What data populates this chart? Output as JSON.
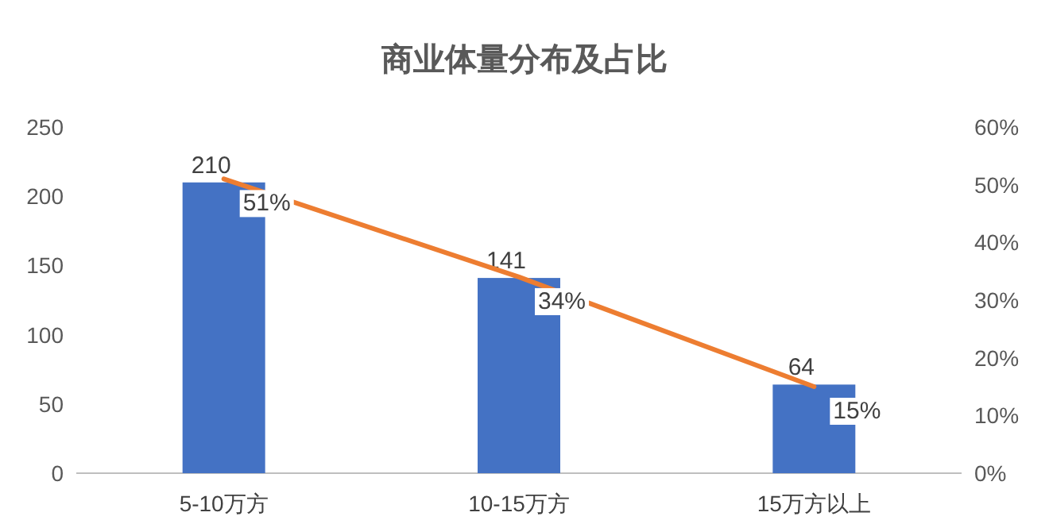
{
  "chart_data": {
    "type": "bar",
    "title": "商业体量分布及占比",
    "categories": [
      "5-10万方",
      "10-15万方",
      "15万方以上"
    ],
    "series": [
      {
        "color": "#4472c4",
        "values": [
          210,
          141,
          64
        ],
        "value_labels": [
          "210",
          "141",
          "64"
        ]
      },
      {
        "type": "line",
        "axis": "y2",
        "color": "#ed7d31",
        "values": [
          51,
          34,
          15
        ],
        "value_labels": [
          "51%",
          "34%",
          "15%"
        ],
        "marker": "none"
      }
    ],
    "ylim": [
      0,
      250
    ],
    "yticks": [
      0,
      50,
      100,
      150,
      200,
      250
    ],
    "y2lim": [
      0,
      60
    ],
    "y2ticks": [
      {
        "value": 0,
        "label": "0%"
      },
      {
        "value": 10,
        "label": "10%"
      },
      {
        "value": 20,
        "label": "20%"
      },
      {
        "value": 30,
        "label": "30%"
      },
      {
        "value": 40,
        "label": "40%"
      },
      {
        "value": 50,
        "label": "50%"
      },
      {
        "value": 60,
        "label": "60%"
      }
    ],
    "grid": false
  }
}
